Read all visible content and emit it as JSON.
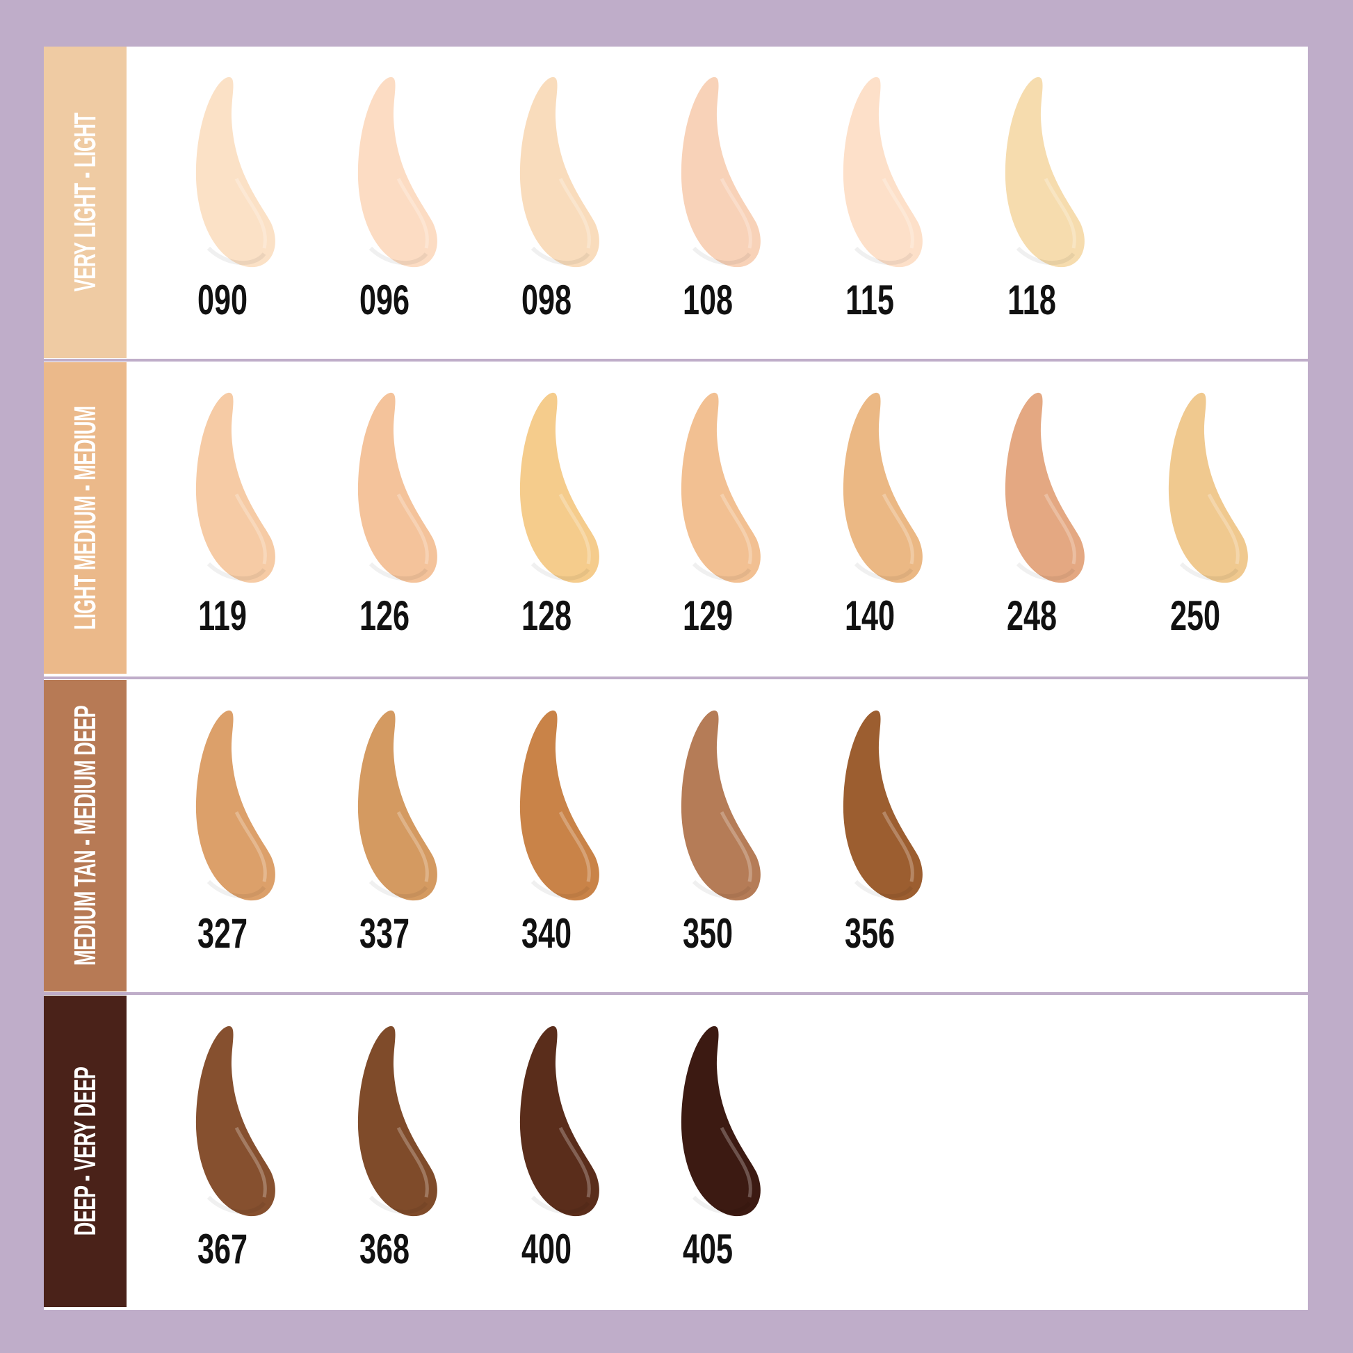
{
  "border_color": "#bfadc9",
  "groups": [
    {
      "label": "VERY LIGHT - LIGHT",
      "color": "#efcba3",
      "shades": [
        {
          "code": "090",
          "color": "#fbe1c6"
        },
        {
          "code": "096",
          "color": "#fcdcc3"
        },
        {
          "code": "098",
          "color": "#f9dcbc"
        },
        {
          "code": "108",
          "color": "#f8d2b8"
        },
        {
          "code": "115",
          "color": "#fde0c9"
        },
        {
          "code": "118",
          "color": "#f6dcae"
        }
      ]
    },
    {
      "label": "LIGHT MEDIUM - MEDIUM",
      "color": "#ebb98a",
      "shades": [
        {
          "code": "119",
          "color": "#f6cba5"
        },
        {
          "code": "126",
          "color": "#f4c39b"
        },
        {
          "code": "128",
          "color": "#f5cc8c"
        },
        {
          "code": "129",
          "color": "#f2c092"
        },
        {
          "code": "140",
          "color": "#ebb884"
        },
        {
          "code": "248",
          "color": "#e4a882"
        },
        {
          "code": "250",
          "color": "#f0c98f"
        }
      ]
    },
    {
      "label": "MEDIUM TAN - MEDIUM DEEP",
      "color": "#b77a55",
      "shades": [
        {
          "code": "327",
          "color": "#dca06a"
        },
        {
          "code": "337",
          "color": "#d49a61"
        },
        {
          "code": "340",
          "color": "#c98348"
        },
        {
          "code": "350",
          "color": "#b57c57"
        },
        {
          "code": "356",
          "color": "#9c5e30"
        }
      ]
    },
    {
      "label": "DEEP - VERY DEEP",
      "color": "#4a2219",
      "shades": [
        {
          "code": "367",
          "color": "#86502f"
        },
        {
          "code": "368",
          "color": "#7f4b2a"
        },
        {
          "code": "400",
          "color": "#5a2d1b"
        },
        {
          "code": "405",
          "color": "#3c1a12"
        }
      ]
    }
  ]
}
